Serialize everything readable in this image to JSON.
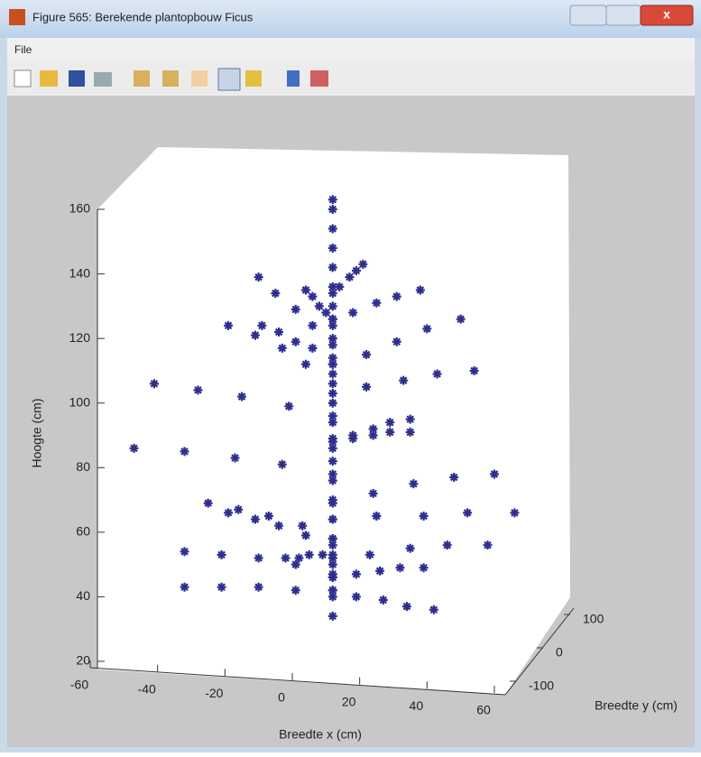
{
  "window": {
    "title": "Figure 565: Berekende plantopbouw Ficus",
    "menu": [
      "File"
    ]
  },
  "chart_data": {
    "type": "scatter3d",
    "color": "#2e2e8f",
    "xlabel": "Breedte x (cm)",
    "ylabel": "Breedte y (cm)",
    "zlabel": "Hoogte (cm)",
    "xlim": [
      -60,
      60
    ],
    "xticks": [
      -60,
      -40,
      -20,
      0,
      20,
      40,
      60
    ],
    "ylim": [
      -100,
      100
    ],
    "yticks": [
      -100,
      0,
      100
    ],
    "zlim": [
      20,
      160
    ],
    "zticks": [
      20,
      40,
      60,
      80,
      100,
      120,
      140,
      160
    ],
    "series": [
      {
        "x": [
          12,
          12,
          12,
          12,
          12,
          12,
          12,
          12,
          12,
          12,
          12,
          12,
          12,
          12,
          12,
          12,
          12,
          12,
          12,
          12,
          12,
          12,
          12
        ],
        "values": [
          34,
          40,
          46,
          52,
          58,
          64,
          70,
          76,
          82,
          88,
          94,
          100,
          106,
          112,
          118,
          124,
          130,
          136,
          142,
          148,
          154,
          160,
          163
        ]
      },
      {
        "x": [
          12,
          1,
          -10,
          -21,
          -32
        ],
        "values": [
          42,
          42,
          43,
          43,
          43
        ]
      },
      {
        "x": [
          12,
          19,
          27,
          34,
          42
        ],
        "values": [
          42,
          40,
          39,
          37,
          36
        ]
      },
      {
        "x": [
          12,
          19,
          26,
          32,
          39
        ],
        "values": [
          46,
          47,
          48,
          49,
          49
        ]
      },
      {
        "x": [
          12,
          1,
          -10,
          -21,
          -32
        ],
        "values": [
          47,
          50,
          52,
          53,
          54
        ]
      },
      {
        "x": [
          12,
          23,
          35,
          46,
          58
        ],
        "values": [
          50,
          53,
          55,
          56,
          56
        ]
      },
      {
        "x": [
          12,
          9,
          5,
          2,
          -2
        ],
        "values": [
          53,
          53,
          53,
          52,
          52
        ]
      },
      {
        "x": [
          12,
          4,
          -4,
          -11,
          -19
        ],
        "values": [
          56,
          59,
          62,
          64,
          66
        ]
      },
      {
        "x": [
          12,
          3,
          -7,
          -16,
          -25
        ],
        "values": [
          58,
          62,
          65,
          67,
          69
        ]
      },
      {
        "x": [
          12,
          25,
          39,
          52,
          66
        ],
        "values": [
          64,
          65,
          65,
          66,
          66
        ]
      },
      {
        "x": [
          12,
          24,
          36,
          48,
          60
        ],
        "values": [
          69,
          72,
          75,
          77,
          78
        ]
      },
      {
        "x": [
          12,
          -3,
          -17,
          -32,
          -47
        ],
        "values": [
          78,
          81,
          83,
          85,
          86
        ]
      },
      {
        "x": [
          12,
          18,
          24,
          29,
          35
        ],
        "values": [
          86,
          89,
          92,
          94,
          95
        ]
      },
      {
        "x": [
          12,
          18,
          24,
          29,
          35
        ],
        "values": [
          89,
          90,
          90,
          91,
          91
        ]
      },
      {
        "x": [
          12,
          -1,
          -15,
          -28,
          -41
        ],
        "values": [
          96,
          99,
          102,
          104,
          106
        ]
      },
      {
        "x": [
          12,
          22,
          33,
          43,
          54
        ],
        "values": [
          103,
          105,
          107,
          109,
          110
        ]
      },
      {
        "x": [
          12,
          4,
          -3,
          -11,
          -19
        ],
        "values": [
          109,
          112,
          117,
          121,
          124
        ]
      },
      {
        "x": [
          12,
          22,
          31,
          40,
          50
        ],
        "values": [
          112,
          115,
          119,
          123,
          126
        ]
      },
      {
        "x": [
          12,
          6,
          1,
          -4,
          -9
        ],
        "values": [
          114,
          117,
          119,
          122,
          124
        ]
      },
      {
        "x": [
          12,
          6,
          1,
          -5,
          -10
        ],
        "values": [
          120,
          124,
          129,
          134,
          139
        ]
      },
      {
        "x": [
          12,
          18,
          25,
          31,
          38
        ],
        "values": [
          126,
          128,
          131,
          133,
          135
        ]
      },
      {
        "x": [
          12,
          10,
          8,
          6,
          4
        ],
        "values": [
          126,
          128,
          130,
          133,
          135
        ]
      },
      {
        "x": [
          12,
          14,
          17,
          19,
          21
        ],
        "values": [
          134,
          136,
          139,
          141,
          143
        ]
      }
    ]
  }
}
